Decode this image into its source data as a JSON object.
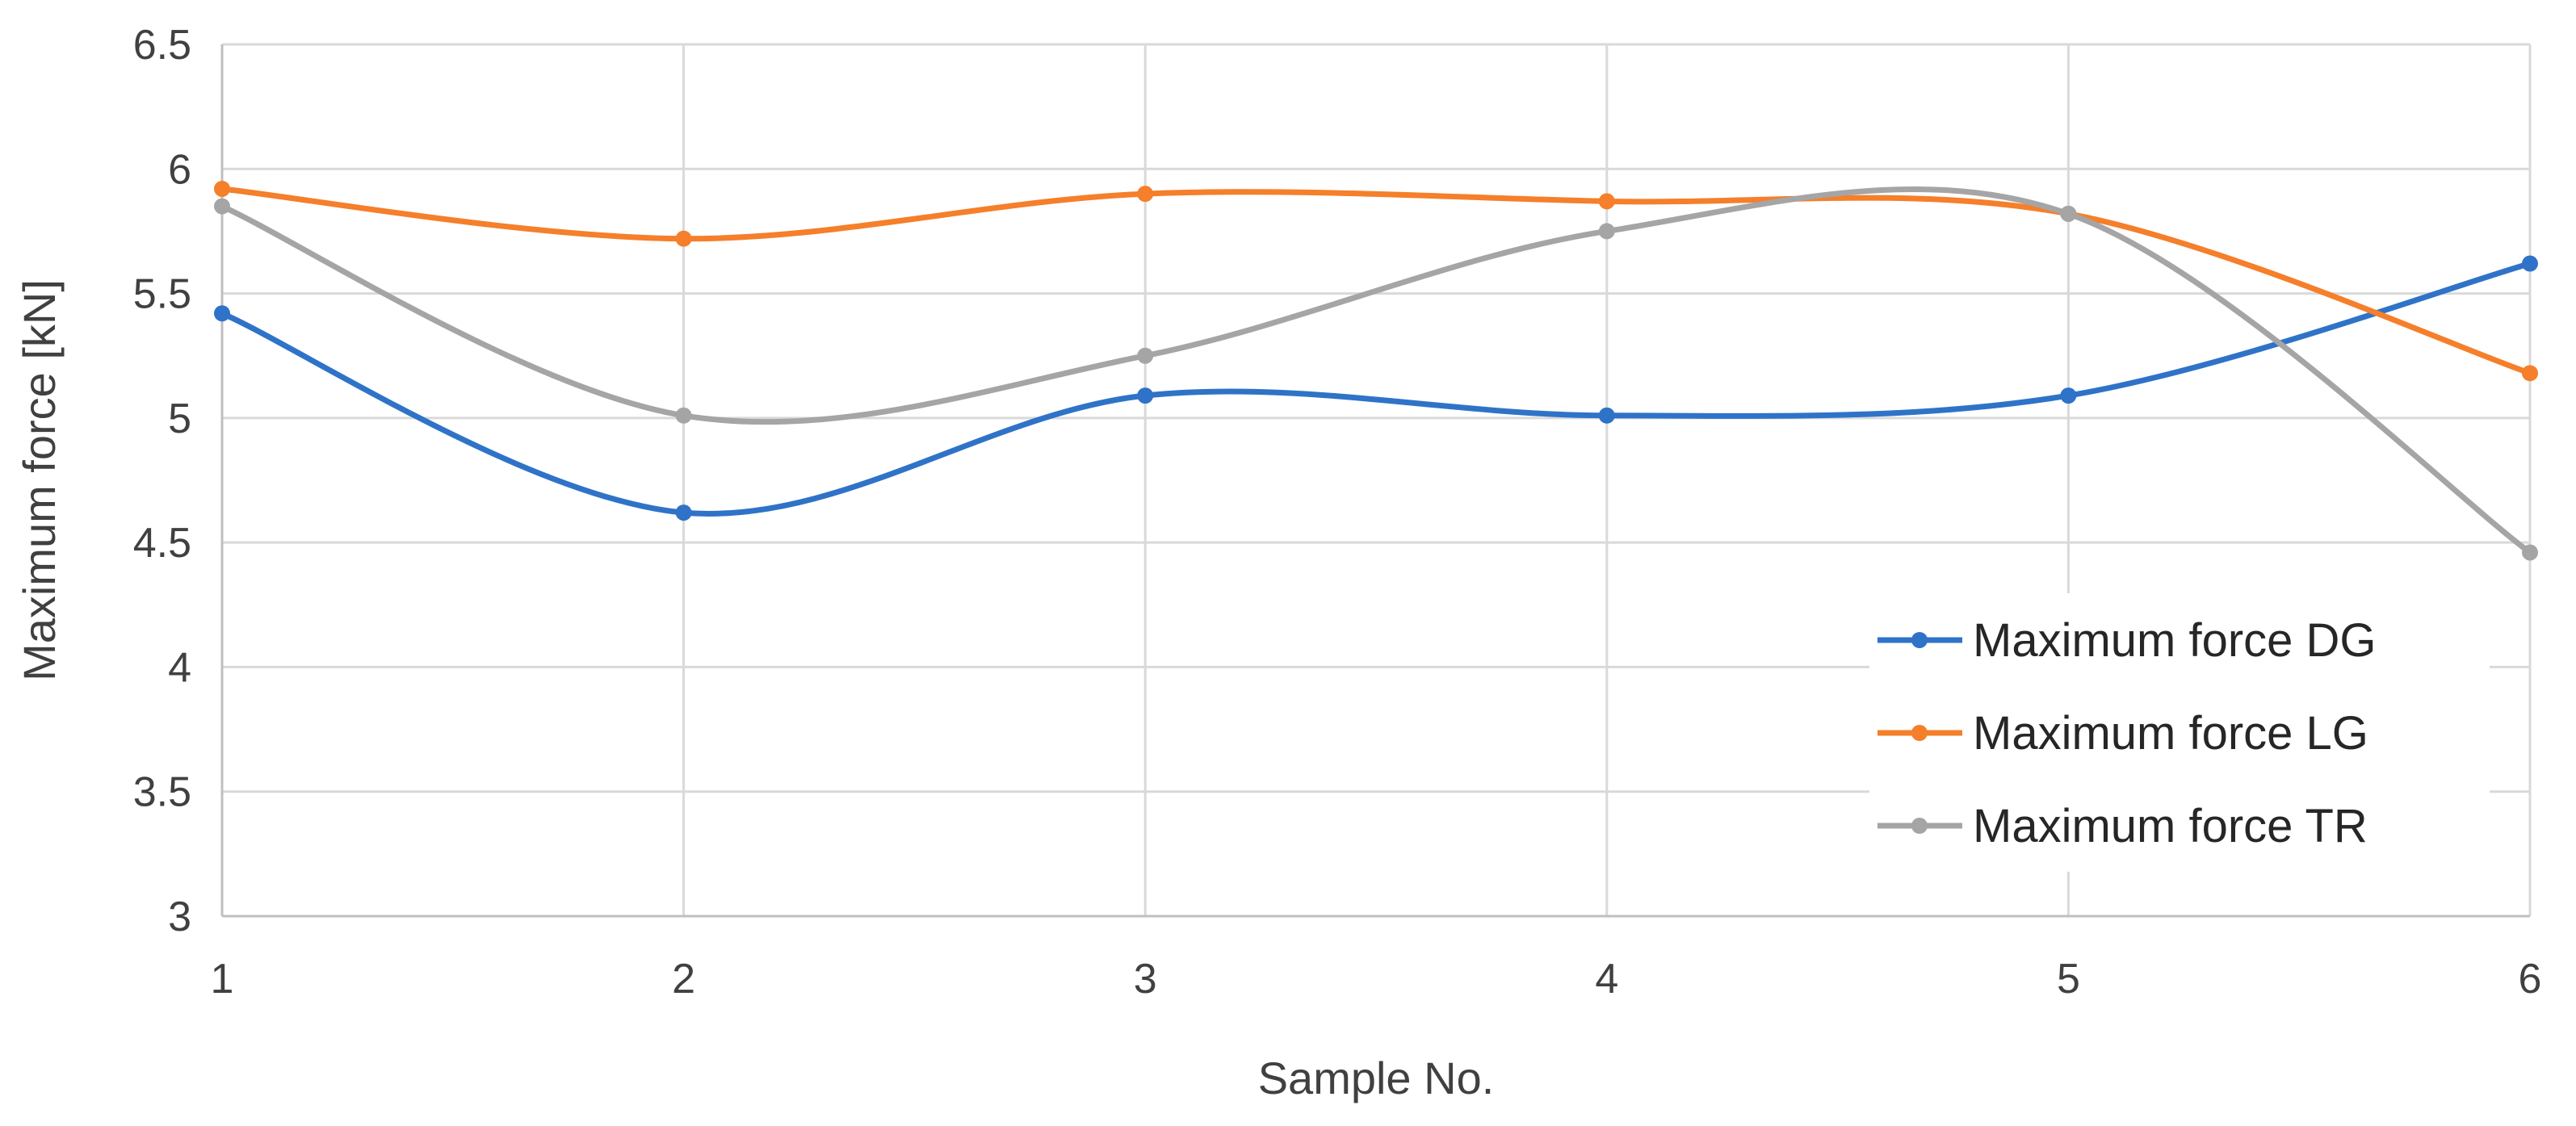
{
  "chart_data": {
    "type": "line",
    "smooth": true,
    "title": "",
    "xlabel": "Sample No.",
    "ylabel": "Maximum force [kN]",
    "x": [
      1,
      2,
      3,
      4,
      5,
      6
    ],
    "x_tick_labels": [
      "1",
      "2",
      "3",
      "4",
      "5",
      "6"
    ],
    "ylim": [
      3,
      6.5
    ],
    "y_ticks": [
      3,
      3.5,
      4,
      4.5,
      5,
      5.5,
      6,
      6.5
    ],
    "y_tick_labels": [
      "3",
      "3.5",
      "4",
      "4.5",
      "5",
      "5.5",
      "6",
      "6.5"
    ],
    "grid": true,
    "legend": "bottom-right",
    "series": [
      {
        "name": "Maximum force DG",
        "color": "#2f73c8",
        "values": [
          5.42,
          4.62,
          5.09,
          5.01,
          5.09,
          5.62
        ]
      },
      {
        "name": "Maximum force LG",
        "color": "#f57f2a",
        "values": [
          5.92,
          5.72,
          5.9,
          5.87,
          5.82,
          5.18
        ]
      },
      {
        "name": "Maximum force TR",
        "color": "#a5a5a5",
        "values": [
          5.85,
          5.01,
          5.25,
          5.75,
          5.82,
          4.46
        ]
      }
    ]
  }
}
